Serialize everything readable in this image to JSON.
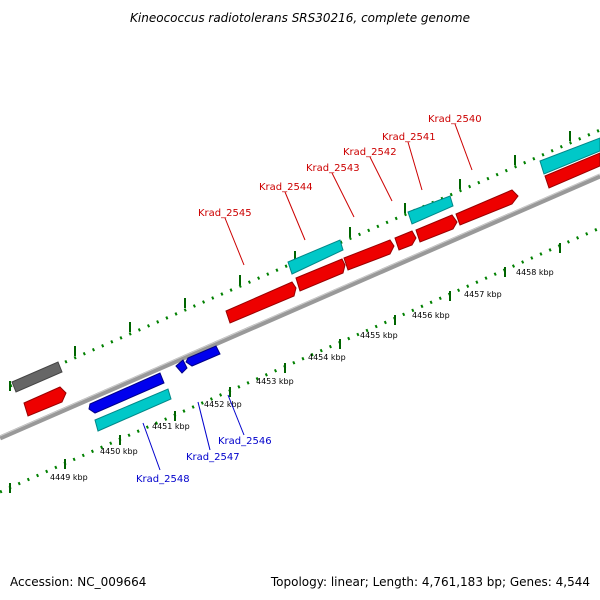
{
  "title": "Kineococcus radiotolerans SRS30216, complete genome",
  "footer": {
    "accession": "Accession: NC_009664",
    "summary": "Topology: linear; Length: 4,761,183 bp; Genes: 4,544"
  },
  "colors": {
    "forward_gene": "#ff0000",
    "reverse_gene": "#0000ff",
    "cds_teal": "#00c8c8",
    "other_feature": "#707070",
    "backbone": "#888888",
    "ruler_tick": "#008000",
    "forward_label": "#cc0000",
    "reverse_label": "#0000cc"
  },
  "scale_labels": [
    "4449 kbp",
    "4450 kbp",
    "4451 kbp",
    "4452 kbp",
    "4453 kbp",
    "4454 kbp",
    "4455 kbp",
    "4456 kbp",
    "4457 kbp",
    "4458 kbp"
  ],
  "forward_gene_labels": [
    "Krad_2545",
    "Krad_2544",
    "Krad_2543",
    "Krad_2542",
    "Krad_2541",
    "Krad_2540"
  ],
  "reverse_gene_labels": [
    "Krad_2548",
    "Krad_2547",
    "Krad_2546"
  ]
}
